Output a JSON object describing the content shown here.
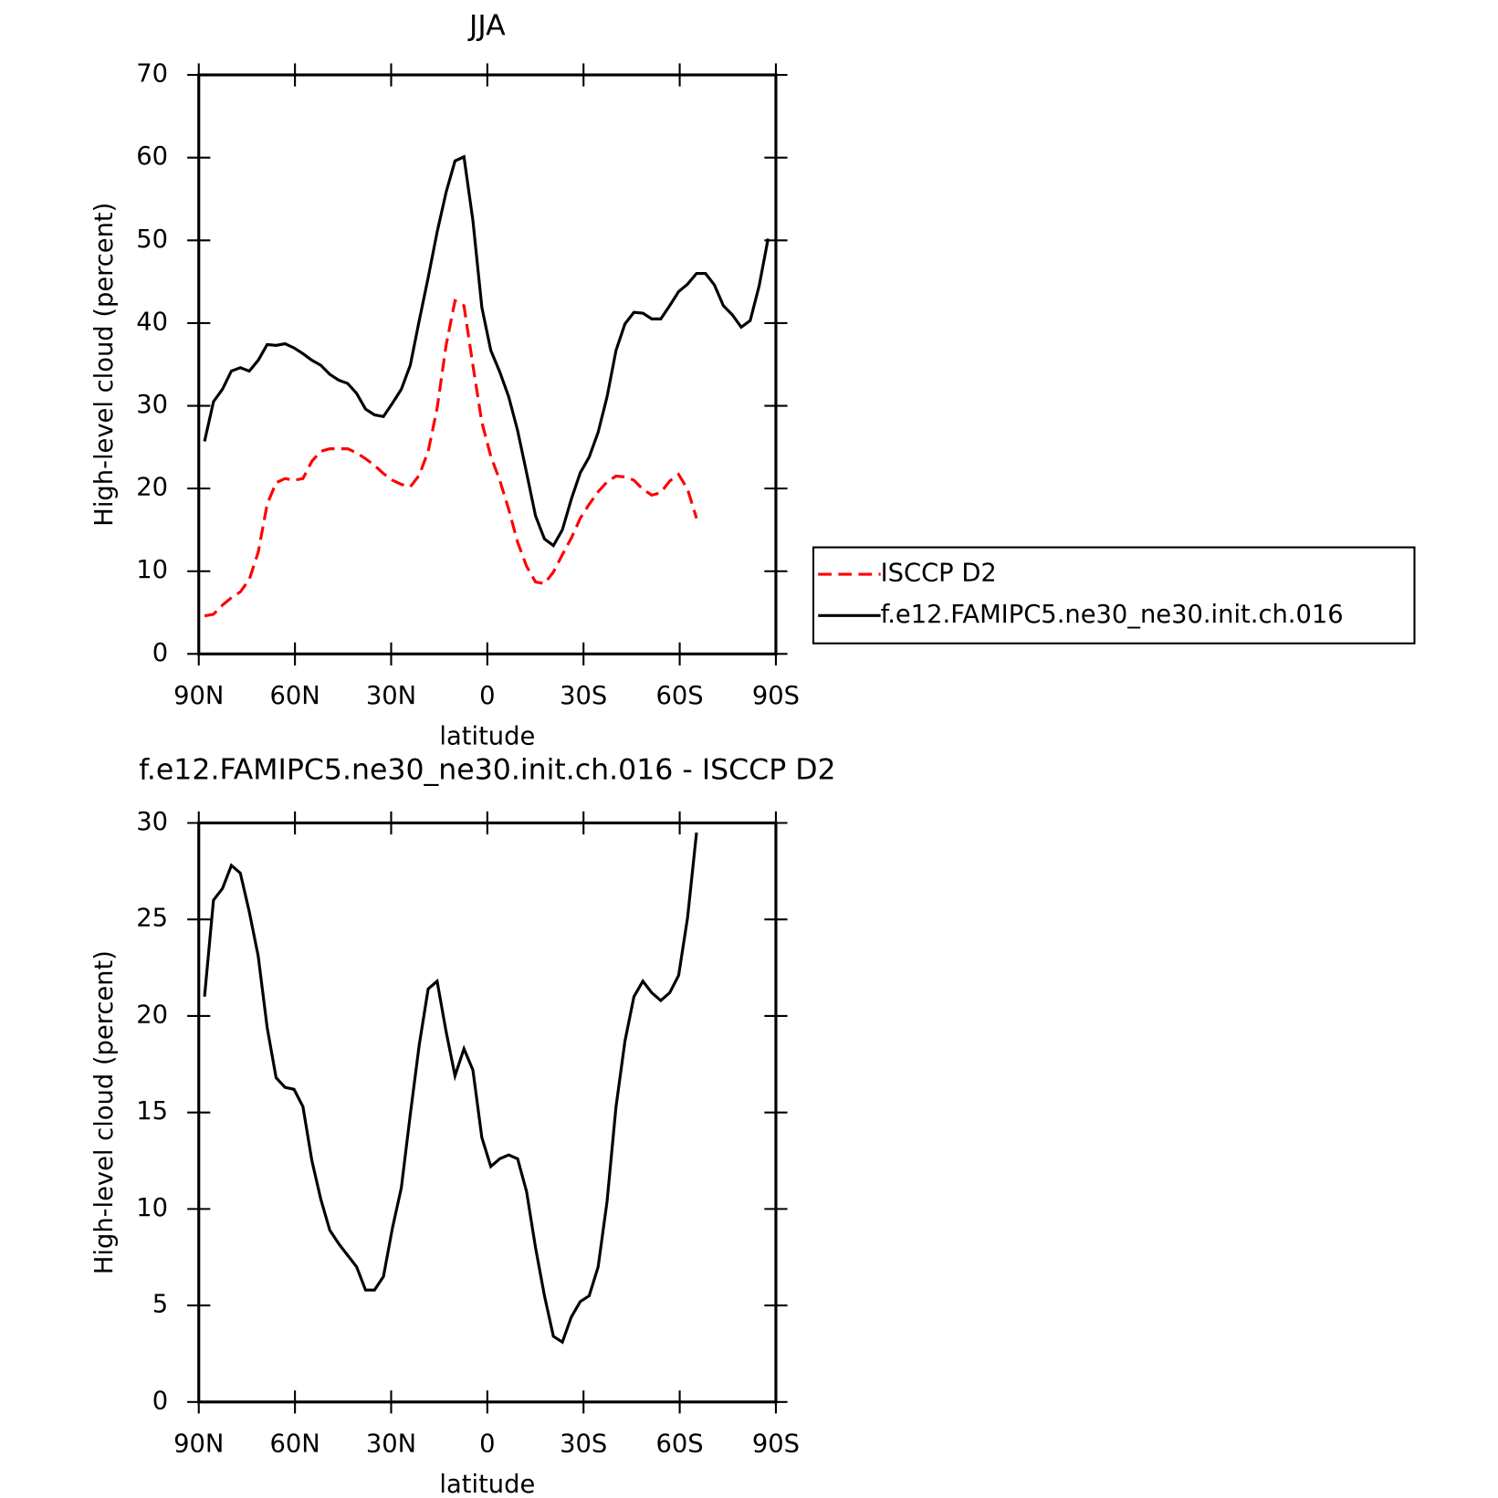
{
  "chart_data": [
    {
      "type": "line",
      "title": "JJA",
      "xlabel": "latitude",
      "ylabel": "High-level cloud (percent)",
      "x": [
        88.2,
        85.41,
        82.62,
        79.83,
        77.04,
        74.25,
        71.46,
        68.67,
        65.88,
        63.09,
        60.3,
        57.51,
        54.72,
        51.93,
        49.14,
        46.35,
        43.56,
        40.77,
        37.98,
        35.19,
        32.4,
        29.61,
        26.82,
        24.03,
        21.24,
        18.45,
        15.66,
        12.87,
        10.08,
        7.29,
        4.5,
        1.71,
        -1.08,
        -3.87,
        -6.66,
        -9.45,
        -12.24,
        -15.03,
        -17.82,
        -20.61,
        -23.4,
        -26.19,
        -28.98,
        -31.77,
        -34.56,
        -37.35,
        -40.14,
        -42.93,
        -45.72,
        -48.51,
        -51.3,
        -54.09,
        -56.88,
        -59.67,
        -62.46,
        -65.25,
        -68.04,
        -70.83,
        -73.62,
        -76.41,
        -79.2,
        -81.99,
        -84.78,
        -87.57
      ],
      "series": [
        {
          "name": "ISCCP D2",
          "color": "#ff0000",
          "dash": true,
          "values": [
            4.6,
            4.8,
            5.9,
            6.8,
            7.5,
            9.0,
            12.3,
            18.1,
            20.7,
            21.2,
            21.0,
            21.2,
            23.3,
            24.5,
            24.8,
            24.8,
            24.8,
            24.3,
            23.6,
            22.8,
            21.8,
            21.0,
            20.5,
            20.2,
            21.6,
            24.5,
            29.7,
            37.3,
            42.7,
            42.1,
            34.9,
            28.0,
            23.9,
            21.0,
            17.5,
            13.5,
            10.6,
            8.7,
            8.5,
            9.9,
            12.0,
            14.0,
            16.4,
            18.1,
            19.6,
            20.8,
            21.5,
            21.4,
            21.0,
            19.9,
            19.2,
            19.5,
            20.9,
            21.7,
            19.9,
            16.4,
            null,
            null,
            null,
            null,
            null,
            null,
            null,
            null
          ]
        },
        {
          "name": "f.e12.FAMIPC5.ne30_ne30.init.ch.016",
          "color": "#000000",
          "dash": false,
          "values": [
            25.7,
            30.5,
            32.0,
            34.2,
            34.6,
            34.2,
            35.5,
            37.4,
            37.3,
            37.5,
            37.0,
            36.3,
            35.5,
            34.9,
            33.8,
            33.1,
            32.7,
            31.5,
            29.6,
            28.9,
            28.7,
            30.3,
            32.0,
            34.9,
            40.3,
            45.5,
            51.0,
            55.8,
            59.6,
            60.1,
            52.4,
            41.9,
            36.7,
            34.1,
            31.1,
            27.0,
            21.9,
            16.7,
            13.9,
            13.1,
            15.0,
            18.7,
            21.9,
            23.8,
            26.8,
            31.1,
            36.7,
            39.9,
            41.3,
            41.2,
            40.5,
            40.5,
            42.1,
            43.8,
            44.7,
            46.0,
            46.0,
            44.6,
            42.1,
            41.0,
            39.5,
            40.3,
            44.5,
            50.2
          ]
        }
      ],
      "xlim": [
        90,
        -90
      ],
      "xticks": [
        {
          "value": 90,
          "label": "90N"
        },
        {
          "value": 60,
          "label": "60N"
        },
        {
          "value": 30,
          "label": "30N"
        },
        0,
        {
          "value": -30,
          "label": "30S"
        },
        {
          "value": -60,
          "label": "60S"
        },
        {
          "value": -90,
          "label": "90S"
        }
      ],
      "ylim": [
        0,
        70
      ],
      "yticks": [
        0,
        10,
        20,
        30,
        40,
        50,
        60,
        70
      ],
      "legend": "right"
    },
    {
      "type": "line",
      "title": "f.e12.FAMIPC5.ne30_ne30.init.ch.016 - ISCCP D2",
      "xlabel": "latitude",
      "ylabel": "High-level cloud (percent)",
      "x": [
        88.2,
        85.41,
        82.62,
        79.83,
        77.04,
        74.25,
        71.46,
        68.67,
        65.88,
        63.09,
        60.3,
        57.51,
        54.72,
        51.93,
        49.14,
        46.35,
        43.56,
        40.77,
        37.98,
        35.19,
        32.4,
        29.61,
        26.82,
        24.03,
        21.24,
        18.45,
        15.66,
        12.87,
        10.08,
        7.29,
        4.5,
        1.71,
        -1.08,
        -3.87,
        -6.66,
        -9.45,
        -12.24,
        -15.03,
        -17.82,
        -20.61,
        -23.4,
        -26.19,
        -28.98,
        -31.77,
        -34.56,
        -37.35,
        -40.14,
        -42.93,
        -45.72,
        -48.51,
        -51.3,
        -54.09,
        -56.88,
        -59.67,
        -62.46,
        -65.25,
        -68.04,
        -70.83,
        -73.62,
        -76.41,
        -79.2,
        -81.99,
        -84.78,
        -87.57
      ],
      "series": [
        {
          "color": "#000000",
          "dash": false,
          "values": [
            21.0,
            26.0,
            26.6,
            27.8,
            27.4,
            25.4,
            23.1,
            19.4,
            16.8,
            16.3,
            16.2,
            15.3,
            12.5,
            10.5,
            8.9,
            8.2,
            7.6,
            7.0,
            5.8,
            5.8,
            6.5,
            9.0,
            11.1,
            14.9,
            18.5,
            21.4,
            21.8,
            19.2,
            16.9,
            18.3,
            17.2,
            13.7,
            12.2,
            12.6,
            12.8,
            12.6,
            10.9,
            8.0,
            5.5,
            3.4,
            3.1,
            4.4,
            5.2,
            5.5,
            7.0,
            10.4,
            15.3,
            18.7,
            21.0,
            21.8,
            21.2,
            20.8,
            21.2,
            22.1,
            25.1,
            29.5,
            null,
            null,
            null,
            null,
            null,
            null,
            null,
            null
          ]
        }
      ],
      "xlim": [
        90,
        -90
      ],
      "xticks": [
        {
          "value": 90,
          "label": "90N"
        },
        {
          "value": 60,
          "label": "60N"
        },
        {
          "value": 30,
          "label": "30N"
        },
        0,
        {
          "value": -30,
          "label": "30S"
        },
        {
          "value": -60,
          "label": "60S"
        },
        {
          "value": -90,
          "label": "90S"
        }
      ],
      "ylim": [
        0,
        30
      ],
      "yticks": [
        0,
        5,
        10,
        15,
        20,
        25,
        30
      ]
    }
  ]
}
